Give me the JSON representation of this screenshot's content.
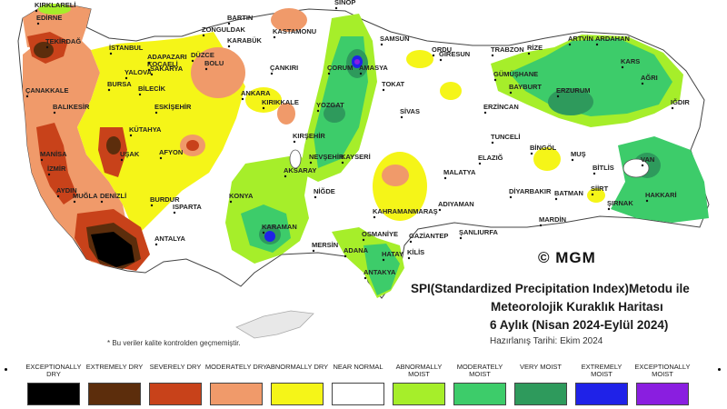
{
  "title": {
    "line1": "SPI(Standardized Precipitation Index)Metodu ile",
    "line2": "Meteorolojik Kuraklık Haritası",
    "line3": "6 Aylık (Nisan 2024-Eylül 2024)",
    "line4": "Hazırlanış Tarihi: Ekim 2024"
  },
  "logo": "© MGM",
  "note": "* Bu veriler kalite kontrolden geçmemiştir.",
  "legend": [
    {
      "label": "EXCEPTIONALLY DRY",
      "color": "#000000"
    },
    {
      "label": "EXTREMELY DRY",
      "color": "#5c2d0c"
    },
    {
      "label": "SEVERELY DRY",
      "color": "#c8421a"
    },
    {
      "label": "MODERATELY DRY",
      "color": "#f09a6a"
    },
    {
      "label": "ABNORMALLY DRY",
      "color": "#f5f518"
    },
    {
      "label": "NEAR NORMAL",
      "color": "#ffffff"
    },
    {
      "label": "ABNORMALLY MOIST",
      "color": "#a6ee2a"
    },
    {
      "label": "MODERATELY MOIST",
      "color": "#3dcc6a"
    },
    {
      "label": "VERY MOIST",
      "color": "#2e9a5c"
    },
    {
      "label": "EXTREMELY MOIST",
      "color": "#1f22e8"
    },
    {
      "label": "EXCEPTIONALLY MOIST",
      "color": "#8a1ee0"
    }
  ],
  "cities": [
    "KIRKLARELİ",
    "EDİRNE",
    "TEKİRDAĞ",
    "İSTANBUL",
    "ÇANAKKALE",
    "BALIKESİR",
    "MANİSA",
    "İZMİR",
    "AYDIN",
    "MUĞLA",
    "DENİZLİ",
    "UŞAK",
    "KÜTAHYA",
    "BİLECİK",
    "BURSA",
    "YALOVA",
    "KOCAELİ",
    "SAKARYA",
    "ADAPAZARI",
    "DÜZCE",
    "BOLU",
    "ESKİŞEHİR",
    "AFYON",
    "ISPARTA",
    "BURDUR",
    "ANTALYA",
    "KONYA",
    "KARAMAN",
    "MERSİN",
    "ADANA",
    "OSMANİYE",
    "HATAY",
    "ANTAKYA",
    "KİLİS",
    "GAZİANTEP",
    "ŞANLIURFA",
    "ADIYAMAN",
    "KAHRAMANMARAŞ",
    "NİĞDE",
    "AKSARAY",
    "NEVŞEHİR",
    "KIRŞEHİR",
    "KAYSERİ",
    "KIRIKKALE",
    "ANKARA",
    "ÇANKIRI",
    "KARABÜK",
    "ZONGULDAK",
    "BARTIN",
    "KASTAMONU",
    "SİNOP",
    "SAMSUN",
    "ÇORUM",
    "AMASYA",
    "TOKAT",
    "YOZGAT",
    "SİVAS",
    "ORDU",
    "GİRESUN",
    "TRABZON",
    "RİZE",
    "ARTVİN",
    "ARDAHAN",
    "KARS",
    "IĞDIR",
    "AĞRI",
    "ERZURUM",
    "BAYBURT",
    "GÜMÜŞHANE",
    "ERZİNCAN",
    "TUNCELİ",
    "BİNGÖL",
    "MUŞ",
    "BİTLİS",
    "VAN",
    "HAKKARİ",
    "ŞIRNAK",
    "SİİRT",
    "BATMAN",
    "DİYARBAKIR",
    "MARDİN",
    "ELAZIĞ",
    "MALATYA"
  ]
}
